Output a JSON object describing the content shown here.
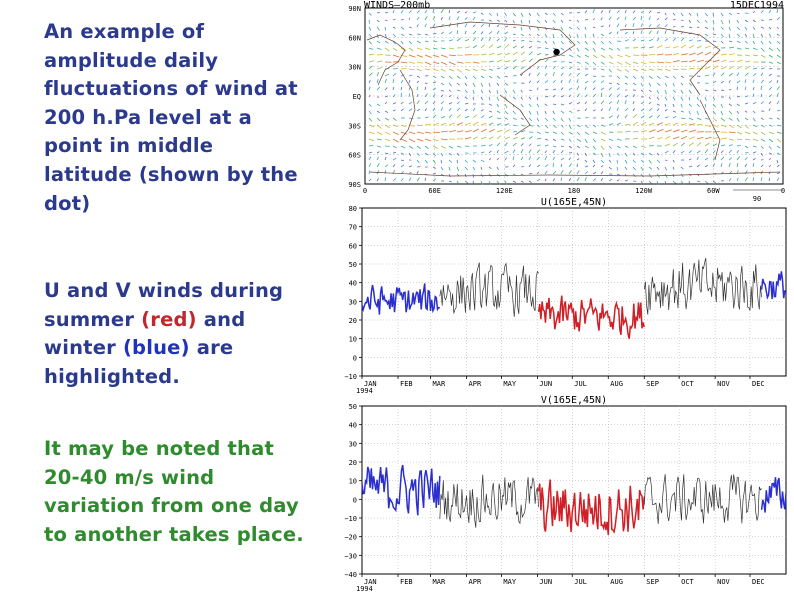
{
  "text": {
    "p1": "An example of amplitude daily fluctuations of wind at 200 h.Pa level at a point in middle latitude (shown by the dot)",
    "p2_before": "U and V winds during summer ",
    "p2_red": "(red)",
    "p2_mid": " and winter ",
    "p2_blue": "(blue)",
    "p2_after": " are highlighted.",
    "p3": "It may be noted that 20-40 m/s wind variation from one day to another takes place."
  },
  "colors": {
    "text_blue": "#2b3a8c",
    "text_green": "#2e8b2e",
    "summer": "#d01f26",
    "winter": "#2b2fcf",
    "other": "#333333"
  },
  "chart_data": [
    {
      "type": "map",
      "title": "WINDS—200mb",
      "date": "15DEC1994",
      "lat_labels": [
        "90N",
        "60N",
        "30N",
        "EQ",
        "30S",
        "60S",
        "90S"
      ],
      "lon_labels": [
        "0",
        "60E",
        "120E",
        "180",
        "120W",
        "60W",
        "0"
      ],
      "legend_label": "90",
      "marker": {
        "lon": 165,
        "lat": 45
      }
    },
    {
      "type": "line",
      "title": "U(165E,45N)",
      "ylim": [
        -10,
        80
      ],
      "yticks": [
        -10,
        0,
        10,
        20,
        30,
        40,
        50,
        60,
        70,
        80
      ],
      "yticklabels": [
        "−10",
        "0",
        "10",
        "20",
        "30",
        "40",
        "50",
        "60",
        "70",
        "80"
      ],
      "months": [
        "JAN",
        "FEB",
        "MAR",
        "APR",
        "MAY",
        "JUN",
        "JUL",
        "AUG",
        "SEP",
        "OCT",
        "NOV",
        "DEC"
      ],
      "year": "1994",
      "series": [
        {
          "season": "winter",
          "days": [
            0,
            67
          ],
          "baseline": 30,
          "amp": 12
        },
        {
          "season": "other",
          "days": [
            67,
            152
          ],
          "baseline": 35,
          "amp": 18
        },
        {
          "season": "summer",
          "days": [
            152,
            243
          ],
          "baseline": 22,
          "amp": 14
        },
        {
          "season": "other",
          "days": [
            243,
            344
          ],
          "baseline": 38,
          "amp": 20
        },
        {
          "season": "winter",
          "days": [
            344,
            365
          ],
          "baseline": 38,
          "amp": 12
        }
      ]
    },
    {
      "type": "line",
      "title": "V(165E,45N)",
      "ylim": [
        -40,
        50
      ],
      "yticks": [
        -40,
        -30,
        -20,
        -10,
        0,
        10,
        20,
        30,
        40,
        50
      ],
      "yticklabels": [
        "−40",
        "−30",
        "−20",
        "−10",
        "0",
        "10",
        "20",
        "30",
        "40",
        "50"
      ],
      "months": [
        "JAN",
        "FEB",
        "MAR",
        "APR",
        "MAY",
        "JUN",
        "JUL",
        "AUG",
        "SEP",
        "OCT",
        "NOV",
        "DEC"
      ],
      "year": "1994",
      "series": [
        {
          "season": "winter",
          "days": [
            0,
            67
          ],
          "baseline": 5,
          "amp": 18
        },
        {
          "season": "other",
          "days": [
            67,
            152
          ],
          "baseline": 0,
          "amp": 18
        },
        {
          "season": "summer",
          "days": [
            152,
            243
          ],
          "baseline": -5,
          "amp": 20
        },
        {
          "season": "other",
          "days": [
            243,
            344
          ],
          "baseline": 0,
          "amp": 18
        },
        {
          "season": "winter",
          "days": [
            344,
            365
          ],
          "baseline": 2,
          "amp": 14
        }
      ]
    }
  ]
}
